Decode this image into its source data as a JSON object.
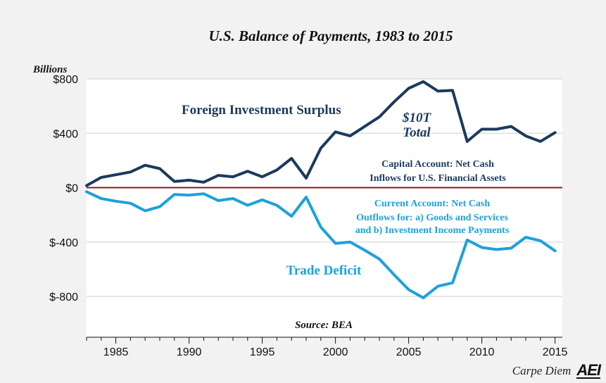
{
  "chart_data": {
    "type": "line",
    "title": "U.S. Balance of Payments, 1983 to 2015",
    "ylabel": "Billions",
    "source": "Source: BEA",
    "xlim": [
      1983,
      2015.5
    ],
    "ylim": [
      -1100,
      800
    ],
    "y_ticks": [
      800,
      400,
      0,
      -400,
      -800
    ],
    "y_tick_labels": [
      "$800",
      "$400",
      "$0",
      "$-400",
      "$-800"
    ],
    "x_ticks": [
      1985,
      1990,
      1995,
      2000,
      2005,
      2010,
      2015
    ],
    "x_tick_labels": [
      "1985",
      "1990",
      "1995",
      "2000",
      "2005",
      "2010",
      "2015"
    ],
    "x": [
      1983,
      1984,
      1985,
      1986,
      1987,
      1988,
      1989,
      1990,
      1991,
      1992,
      1993,
      1994,
      1995,
      1996,
      1997,
      1998,
      1999,
      2000,
      2001,
      2002,
      2003,
      2004,
      2005,
      2006,
      2007,
      2008,
      2009,
      2010,
      2011,
      2012,
      2013,
      2014,
      2015
    ],
    "series": [
      {
        "label": "Foreign Investment Surplus",
        "color": "#1b3a5e",
        "values": [
          15,
          75,
          95,
          115,
          165,
          140,
          45,
          55,
          40,
          90,
          80,
          120,
          80,
          130,
          215,
          70,
          290,
          410,
          380,
          450,
          520,
          630,
          730,
          780,
          710,
          715,
          340,
          430,
          430,
          450,
          380,
          340,
          405
        ]
      },
      {
        "label": "Trade Deficit",
        "color": "#1da1dc",
        "values": [
          -30,
          -80,
          -100,
          -115,
          -170,
          -140,
          -50,
          -55,
          -45,
          -95,
          -80,
          -130,
          -90,
          -130,
          -210,
          -70,
          -290,
          -410,
          -400,
          -460,
          -525,
          -640,
          -750,
          -810,
          -725,
          -700,
          -385,
          -440,
          -455,
          -445,
          -365,
          -390,
          -465
        ]
      }
    ],
    "annotations": {
      "foreign_investment": "Foreign Investment Surplus",
      "total_line1": "$10T",
      "total_line2": "Total",
      "capital_line1": "Capital Account: Net Cash",
      "capital_line2": "Inflows for U.S. Financial Assets",
      "trade_deficit": "Trade Deficit",
      "current_line1": "Current Account: Net Cash",
      "current_line2": "Outflows for: a) Goods and Services",
      "current_line3": "and b) Investment Income Payments"
    },
    "grid": true,
    "zero_line_color": "#8b1a1a"
  },
  "branding": {
    "text": "Carpe Diem",
    "logo": "AEI"
  }
}
